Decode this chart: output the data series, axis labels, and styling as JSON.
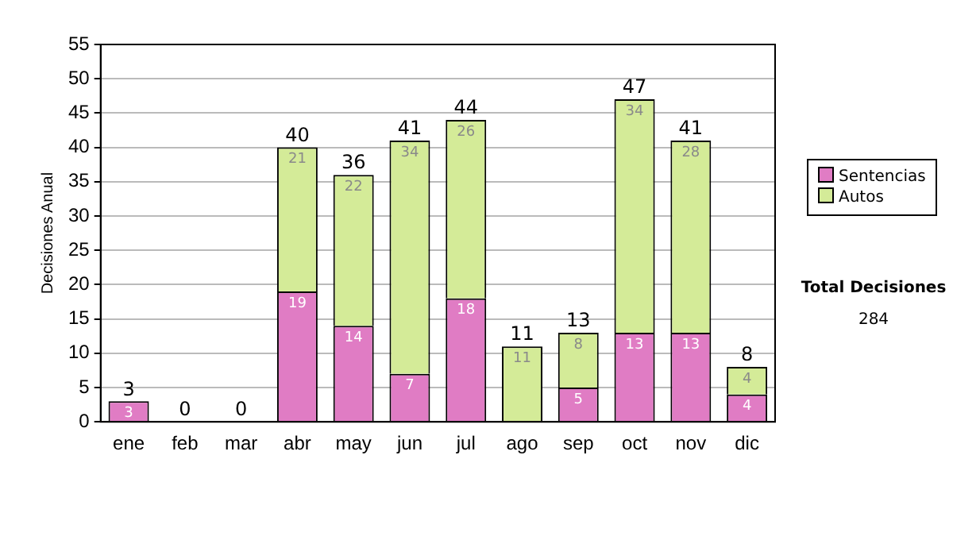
{
  "chart_data": {
    "type": "bar",
    "stacked": true,
    "ylabel": "Decisiones Anual",
    "categories": [
      "ene",
      "feb",
      "mar",
      "abr",
      "may",
      "jun",
      "jul",
      "ago",
      "sep",
      "oct",
      "nov",
      "dic"
    ],
    "series": [
      {
        "name": "Sentencias",
        "color": "#e07cc4",
        "values": [
          3,
          0,
          0,
          19,
          14,
          7,
          18,
          0,
          5,
          13,
          13,
          4
        ],
        "value_labels": [
          "3",
          null,
          null,
          "19",
          "14",
          "7",
          "18",
          null,
          "5",
          "13",
          "13",
          "4"
        ]
      },
      {
        "name": "Autos",
        "color": "#d4eb98",
        "values": [
          0,
          0,
          0,
          21,
          22,
          34,
          26,
          11,
          8,
          34,
          28,
          4
        ],
        "value_labels": [
          null,
          null,
          null,
          "21",
          "22",
          "34",
          "26",
          "11",
          "8",
          "34",
          "28",
          "4"
        ]
      }
    ],
    "totals": [
      "3",
      "0",
      "0",
      "40",
      "36",
      "41",
      "44",
      "11",
      "13",
      "47",
      "41",
      "8"
    ],
    "ylim": [
      0,
      55
    ],
    "yticks": [
      0,
      5,
      10,
      15,
      20,
      25,
      30,
      35,
      40,
      45,
      50,
      55
    ],
    "grid": "y",
    "legend": "right",
    "annotations": [
      "Total Decisiones",
      "284"
    ]
  }
}
